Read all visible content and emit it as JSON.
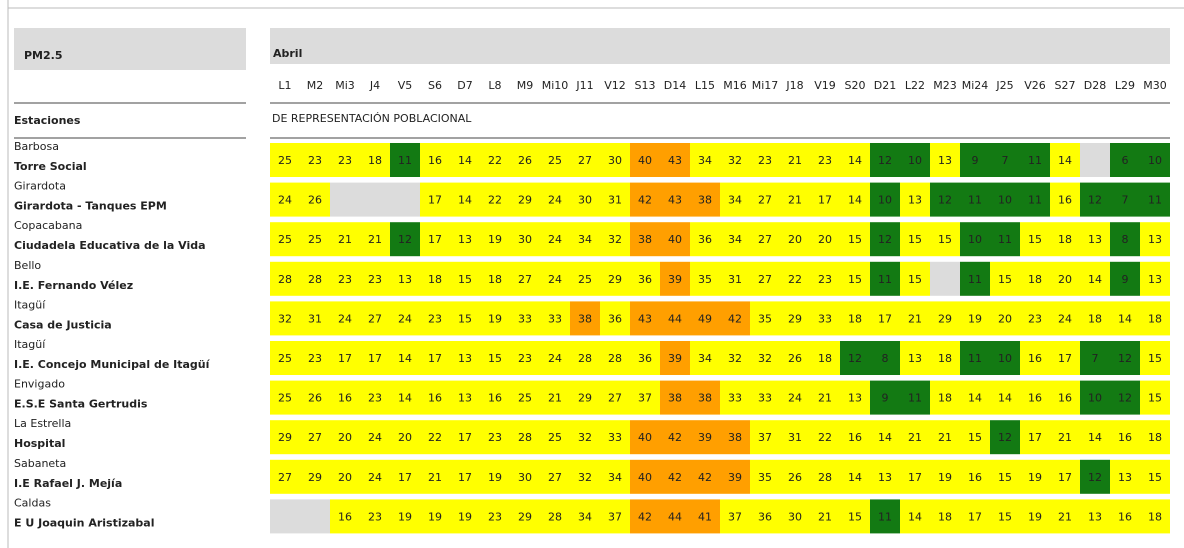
{
  "header": {
    "pollutant": "PM2.5",
    "month": "Abril",
    "stations_label": "Estaciones",
    "group_label": "DE REPRESENTACIÓN POBLACIONAL"
  },
  "days": [
    "L1",
    "M2",
    "Mi3",
    "J4",
    "V5",
    "S6",
    "D7",
    "L8",
    "M9",
    "Mi10",
    "J11",
    "V12",
    "S13",
    "D14",
    "L15",
    "M16",
    "Mi17",
    "J18",
    "V19",
    "S20",
    "D21",
    "L22",
    "M23",
    "Mi24",
    "J25",
    "V26",
    "S27",
    "D28",
    "L29",
    "M30"
  ],
  "color_scale": [
    {
      "upto": 12,
      "color": "#137a13"
    },
    {
      "upto": 37,
      "color": "#ffff00"
    },
    {
      "color": "#ff9f00"
    }
  ],
  "empty_color": "#dcdcdc",
  "table": {
    "rows": [
      {
        "city": "Barbosa",
        "station": "Torre Social",
        "values": [
          25,
          23,
          23,
          18,
          11,
          16,
          14,
          22,
          26,
          25,
          27,
          30,
          40,
          43,
          34,
          32,
          23,
          21,
          23,
          14,
          12,
          10,
          13,
          9,
          7,
          11,
          14,
          null,
          6,
          10
        ]
      },
      {
        "city": "Girardota",
        "station": "Girardota - Tanques EPM",
        "values": [
          24,
          26,
          null,
          null,
          null,
          17,
          14,
          22,
          29,
          24,
          30,
          31,
          42,
          43,
          38,
          34,
          27,
          21,
          17,
          14,
          10,
          13,
          12,
          11,
          10,
          11,
          16,
          12,
          7,
          11
        ]
      },
      {
        "city": "Copacabana",
        "station": "Ciudadela Educativa de la Vida",
        "values": [
          25,
          25,
          21,
          21,
          12,
          17,
          13,
          19,
          30,
          24,
          34,
          32,
          38,
          40,
          36,
          34,
          27,
          20,
          20,
          15,
          12,
          15,
          15,
          10,
          11,
          15,
          18,
          13,
          8,
          13
        ]
      },
      {
        "city": "Bello",
        "station": "I.E. Fernando Vélez",
        "values": [
          28,
          28,
          23,
          23,
          13,
          18,
          15,
          18,
          27,
          24,
          25,
          29,
          36,
          39,
          35,
          31,
          27,
          22,
          23,
          15,
          11,
          15,
          null,
          11,
          15,
          18,
          20,
          14,
          9,
          13
        ]
      },
      {
        "city": "Itagüí",
        "station": "Casa de Justicia",
        "values": [
          32,
          31,
          24,
          27,
          24,
          23,
          15,
          19,
          33,
          33,
          38,
          36,
          43,
          44,
          49,
          42,
          35,
          29,
          33,
          18,
          17,
          21,
          29,
          19,
          20,
          23,
          24,
          18,
          14,
          18
        ]
      },
      {
        "city": "Itagüí",
        "station": "I.E. Concejo Municipal de Itagüí",
        "values": [
          25,
          23,
          17,
          17,
          14,
          17,
          13,
          15,
          23,
          24,
          28,
          28,
          36,
          39,
          34,
          32,
          32,
          26,
          18,
          12,
          8,
          13,
          18,
          11,
          10,
          16,
          17,
          7,
          12,
          15
        ]
      },
      {
        "city": "Envigado",
        "station": "E.S.E Santa Gertrudis",
        "values": [
          25,
          26,
          16,
          23,
          14,
          16,
          13,
          16,
          25,
          21,
          29,
          27,
          37,
          38,
          38,
          33,
          33,
          24,
          21,
          13,
          9,
          11,
          18,
          14,
          14,
          16,
          16,
          10,
          12,
          15
        ]
      },
      {
        "city": "La Estrella",
        "station": "Hospital",
        "values": [
          29,
          27,
          20,
          24,
          20,
          22,
          17,
          23,
          28,
          25,
          32,
          33,
          40,
          42,
          39,
          38,
          37,
          31,
          22,
          16,
          14,
          21,
          21,
          15,
          12,
          17,
          21,
          14,
          16,
          18
        ]
      },
      {
        "city": "Sabaneta",
        "station": "I.E Rafael J. Mejía",
        "values": [
          27,
          29,
          20,
          24,
          17,
          21,
          17,
          19,
          30,
          27,
          32,
          34,
          40,
          42,
          42,
          39,
          35,
          26,
          28,
          14,
          13,
          17,
          19,
          16,
          15,
          19,
          17,
          12,
          13,
          15
        ]
      },
      {
        "city": "Caldas",
        "station": "E U Joaquin Aristizabal",
        "values": [
          null,
          null,
          16,
          23,
          19,
          19,
          19,
          23,
          29,
          28,
          34,
          37,
          42,
          44,
          41,
          37,
          36,
          30,
          21,
          15,
          11,
          14,
          18,
          17,
          15,
          19,
          21,
          13,
          16,
          18
        ]
      }
    ]
  }
}
